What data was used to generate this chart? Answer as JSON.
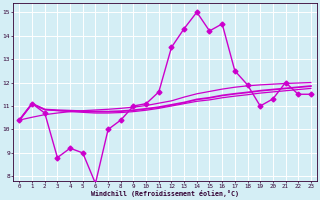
{
  "xlabel": "Windchill (Refroidissement éolien,°C)",
  "background_color": "#d4eef5",
  "grid_color": "#ffffff",
  "line_color": "#cc00cc",
  "x_ticks": [
    0,
    1,
    2,
    3,
    4,
    5,
    6,
    7,
    8,
    9,
    10,
    11,
    12,
    13,
    14,
    15,
    16,
    17,
    18,
    19,
    20,
    21,
    22,
    23
  ],
  "y_ticks": [
    8,
    9,
    10,
    11,
    12,
    13,
    14,
    15
  ],
  "xlim": [
    -0.5,
    23.5
  ],
  "ylim": [
    7.8,
    15.4
  ],
  "series": [
    {
      "x": [
        0,
        1,
        2,
        3,
        4,
        5,
        6,
        7,
        8,
        9,
        10,
        11,
        12,
        13,
        14,
        15,
        16,
        17,
        18,
        19,
        20,
        21,
        22,
        23
      ],
      "y": [
        10.4,
        11.1,
        10.7,
        8.8,
        9.2,
        9.0,
        7.7,
        10.0,
        10.4,
        11.0,
        11.1,
        11.6,
        13.5,
        14.3,
        15.0,
        14.2,
        14.5,
        12.5,
        11.9,
        11.0,
        11.3,
        12.0,
        11.5,
        11.5
      ],
      "marker": "D",
      "markersize": 2.5,
      "linewidth": 1.0
    },
    {
      "x": [
        0,
        1,
        2,
        3,
        4,
        5,
        6,
        7,
        8,
        9,
        10,
        11,
        12,
        13,
        14,
        15,
        16,
        17,
        18,
        19,
        20,
        21,
        22,
        23
      ],
      "y": [
        10.4,
        11.1,
        10.85,
        10.82,
        10.8,
        10.78,
        10.76,
        10.76,
        10.78,
        10.82,
        10.88,
        10.95,
        11.05,
        11.15,
        11.28,
        11.35,
        11.45,
        11.52,
        11.58,
        11.65,
        11.7,
        11.75,
        11.8,
        11.85
      ],
      "marker": null,
      "markersize": 0,
      "linewidth": 1.3
    },
    {
      "x": [
        0,
        1,
        2,
        3,
        4,
        5,
        6,
        7,
        8,
        9,
        10,
        11,
        12,
        13,
        14,
        15,
        16,
        17,
        18,
        19,
        20,
        21,
        22,
        23
      ],
      "y": [
        10.4,
        11.1,
        10.85,
        10.8,
        10.76,
        10.73,
        10.7,
        10.7,
        10.72,
        10.76,
        10.82,
        10.9,
        11.0,
        11.1,
        11.2,
        11.26,
        11.35,
        11.42,
        11.48,
        11.55,
        11.6,
        11.65,
        11.7,
        11.75
      ],
      "marker": null,
      "markersize": 0,
      "linewidth": 0.9
    },
    {
      "x": [
        0,
        1,
        2,
        3,
        4,
        5,
        6,
        7,
        8,
        9,
        10,
        11,
        12,
        13,
        14,
        15,
        16,
        17,
        18,
        19,
        20,
        21,
        22,
        23
      ],
      "y": [
        10.4,
        10.52,
        10.63,
        10.7,
        10.76,
        10.8,
        10.83,
        10.86,
        10.9,
        10.95,
        11.02,
        11.12,
        11.22,
        11.38,
        11.52,
        11.62,
        11.72,
        11.8,
        11.86,
        11.9,
        11.93,
        11.96,
        11.98,
        12.0
      ],
      "marker": null,
      "markersize": 0,
      "linewidth": 0.9
    }
  ]
}
